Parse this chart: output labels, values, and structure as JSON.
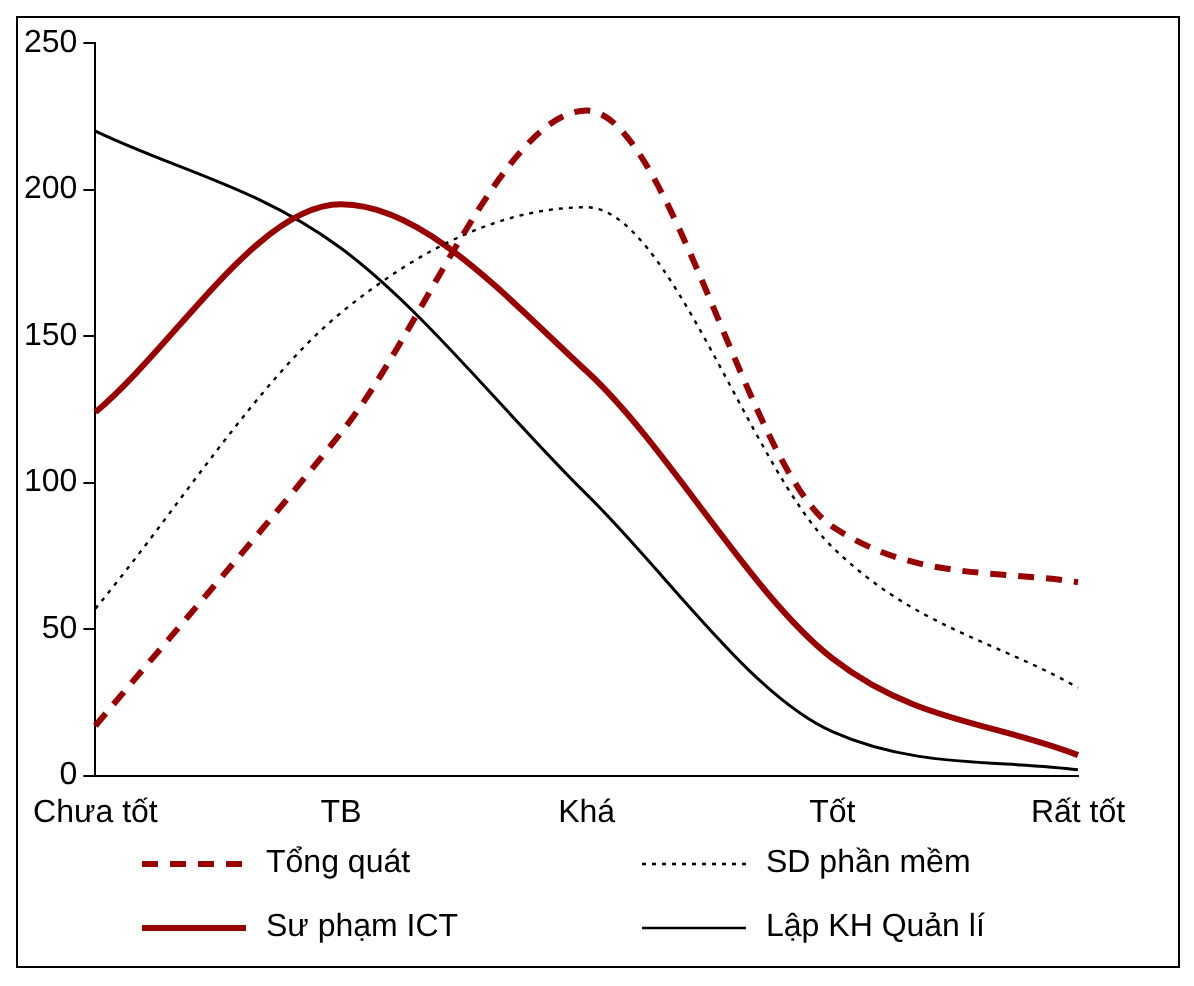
{
  "chart_data": {
    "type": "line",
    "categories": [
      "Chưa tốt",
      "TB",
      "Khá",
      "Tốt",
      "Rất tốt"
    ],
    "series": [
      {
        "name": "Tổng quát",
        "color": "#990000",
        "line_style": "dashed",
        "values": [
          17,
          117,
          227,
          85,
          66
        ]
      },
      {
        "name": "SD phần mềm",
        "color": "#000000",
        "line_style": "dotted",
        "values": [
          57,
          158,
          194,
          78,
          30
        ]
      },
      {
        "name": "Sư phạm ICT",
        "color": "#990000",
        "line_style": "solid",
        "values": [
          124,
          195,
          138,
          40,
          7
        ]
      },
      {
        "name": "Lập KH Quản lí",
        "color": "#000000",
        "line_style": "solid",
        "values": [
          220,
          180,
          96,
          15,
          2
        ]
      }
    ],
    "ylim": [
      0,
      250
    ],
    "yticks": [
      0,
      50,
      100,
      150,
      200,
      250
    ],
    "grid": false,
    "legend": "bottom",
    "marker": "none"
  }
}
